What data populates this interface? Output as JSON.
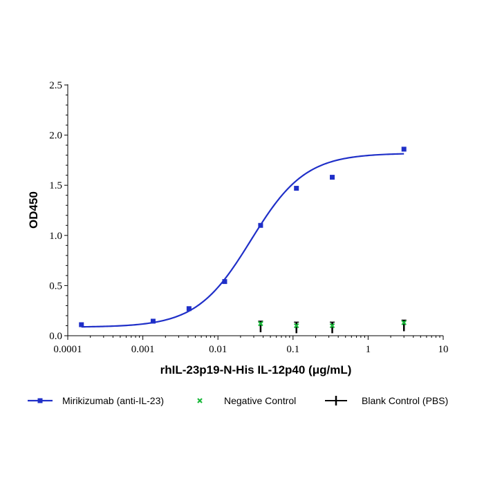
{
  "colors": {
    "mirikizumab": "#1f2fc8",
    "negative": "#1ab83a",
    "blank": "#000000",
    "axis": "#000000"
  },
  "chart_data": {
    "type": "scatter",
    "xlabel": "rhIL-23p19-N-His IL-12p40 (μg/mL)",
    "ylabel": "OD450",
    "x_scale": "log",
    "xlim": [
      0.0001,
      10
    ],
    "ylim": [
      0,
      2.5
    ],
    "x_ticks": [
      0.0001,
      0.001,
      0.01,
      0.1,
      1,
      10
    ],
    "x_tick_labels": [
      "0.0001",
      "0.001",
      "0.01",
      "0.1",
      "1",
      "10"
    ],
    "y_ticks": [
      0,
      0.5,
      1,
      1.5,
      2,
      2.5
    ],
    "y_tick_labels": [
      "0.0",
      "0.5",
      "1.0",
      "1.5",
      "2.0",
      "2.5"
    ],
    "grid": false,
    "legend_position": "bottom",
    "series": [
      {
        "name": "Mirikizumab (anti-IL-23)",
        "marker": "square",
        "fit": "4PL",
        "fit_params": {
          "bottom": 0.085,
          "top": 1.82,
          "ec50": 0.0275,
          "hill": 1.2
        },
        "x": [
          0.000152,
          0.00137,
          0.00412,
          0.0123,
          0.037,
          0.111,
          0.333,
          3.0
        ],
        "y": [
          0.11,
          0.145,
          0.27,
          0.54,
          1.1,
          1.47,
          1.58,
          1.86
        ]
      },
      {
        "name": "Negative Control",
        "marker": "x",
        "x": [
          0.037,
          0.111,
          0.333,
          3.0
        ],
        "y": [
          0.12,
          0.1,
          0.1,
          0.13
        ]
      },
      {
        "name": "Blank Control (PBS)",
        "marker": "bar",
        "x": [
          0.037,
          0.111,
          0.333,
          3.0
        ],
        "y": [
          0.09,
          0.08,
          0.08,
          0.1
        ]
      }
    ]
  }
}
